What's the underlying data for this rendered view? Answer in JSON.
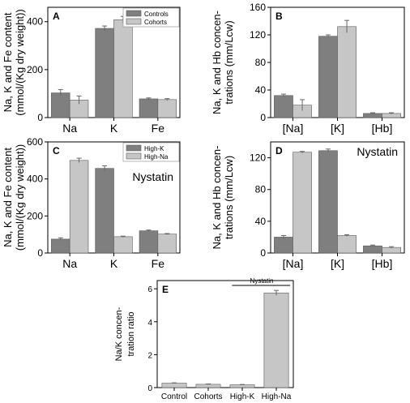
{
  "colors": {
    "dark": "#7f7f7f",
    "light": "#c6c6c6",
    "bar_stroke": "#5a5a5a"
  },
  "chart_data": [
    {
      "panel": "A",
      "type": "bar",
      "categories": [
        "Na",
        "K",
        "Fe"
      ],
      "series": [
        {
          "name": "Controls",
          "color": "dark",
          "values": [
            103,
            372,
            78
          ],
          "errors": [
            14,
            10,
            4
          ]
        },
        {
          "name": "Cohorts",
          "color": "light",
          "values": [
            73,
            408,
            75
          ],
          "errors": [
            17,
            14,
            4
          ]
        }
      ],
      "ylabel": [
        "Na, K and Fe content",
        "(mmol/(Kg dry weight))"
      ],
      "ylim": [
        0,
        460
      ],
      "yticks": [
        0,
        200,
        400
      ],
      "legend": "top-right",
      "annotation": ""
    },
    {
      "panel": "B",
      "type": "bar",
      "categories": [
        "[Na]",
        "[K]",
        "[Hb]"
      ],
      "series": [
        {
          "name": "Controls",
          "color": "dark",
          "values": [
            32,
            118,
            6
          ],
          "errors": [
            2,
            2,
            1
          ]
        },
        {
          "name": "Cohorts",
          "color": "light",
          "values": [
            18,
            132,
            6
          ],
          "errors": [
            8,
            9,
            1
          ]
        }
      ],
      "ylabel": [
        "Na, K and Hb concen-",
        "trations (mm/Lcw)"
      ],
      "ylim": [
        0,
        160
      ],
      "yticks": [
        0,
        40,
        80,
        120,
        160
      ],
      "legend": "",
      "annotation": ""
    },
    {
      "panel": "C",
      "type": "bar",
      "categories": [
        "Na",
        "K",
        "Fe"
      ],
      "series": [
        {
          "name": "High-K",
          "color": "dark",
          "values": [
            75,
            457,
            120
          ],
          "errors": [
            7,
            14,
            4
          ]
        },
        {
          "name": "High-Na",
          "color": "light",
          "values": [
            500,
            88,
            102
          ],
          "errors": [
            12,
            3,
            3
          ]
        }
      ],
      "ylabel": [
        "Na, K and Fe content",
        "(mmol/(Kg dry weight))"
      ],
      "ylim": [
        0,
        600
      ],
      "yticks": [
        0,
        200,
        400,
        600
      ],
      "legend": "top-right",
      "annotation": "Nystatin"
    },
    {
      "panel": "D",
      "type": "bar",
      "categories": [
        "[Na]",
        "[K]",
        "[Hb]"
      ],
      "series": [
        {
          "name": "High-K",
          "color": "dark",
          "values": [
            20,
            129,
            9
          ],
          "errors": [
            2,
            2,
            1
          ]
        },
        {
          "name": "High-Na",
          "color": "light",
          "values": [
            127,
            22,
            7
          ],
          "errors": [
            1,
            1,
            1
          ]
        }
      ],
      "ylabel": [
        "Na, K and Hb concen-",
        "trations (mm/Lcw)"
      ],
      "ylim": [
        0,
        140
      ],
      "yticks": [
        0,
        40,
        80,
        120
      ],
      "legend": "",
      "annotation": "Nystatin"
    },
    {
      "panel": "E",
      "type": "bar",
      "categories": [
        "Control",
        "Cohorts",
        "High-K",
        "High-Na"
      ],
      "series": [
        {
          "name": "",
          "color": "light",
          "values": [
            0.27,
            0.2,
            0.17,
            5.75
          ],
          "errors": [
            0.02,
            0.02,
            0.02,
            0.15
          ]
        }
      ],
      "ylabel": [
        "Na/K concen-",
        "tration ratio"
      ],
      "ylim": [
        0,
        6.5
      ],
      "yticks": [
        0,
        2,
        4,
        6
      ],
      "legend": "",
      "annotation": "Nystatin"
    }
  ]
}
